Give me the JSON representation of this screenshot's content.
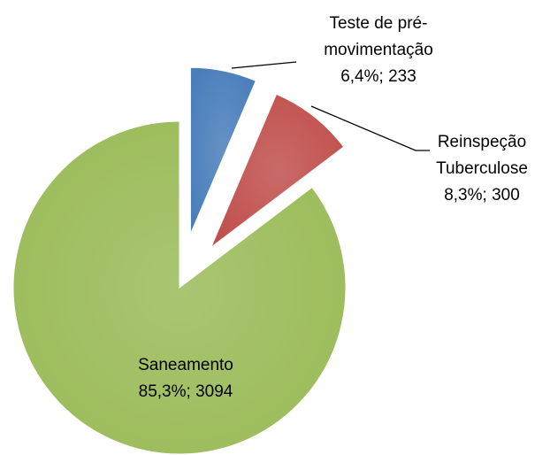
{
  "chart_data": {
    "type": "pie",
    "categories": [
      "Teste de pré-movimentação",
      "Reinspeção Tuberculose",
      "Saneamento"
    ],
    "values": [
      233,
      300,
      3094
    ],
    "value_labels": [
      "6,4%; 233",
      "8,3%; 300",
      "85,3%; 3094"
    ],
    "colors": [
      "#4a7ebb",
      "#c0504d",
      "#9bbb59"
    ]
  }
}
